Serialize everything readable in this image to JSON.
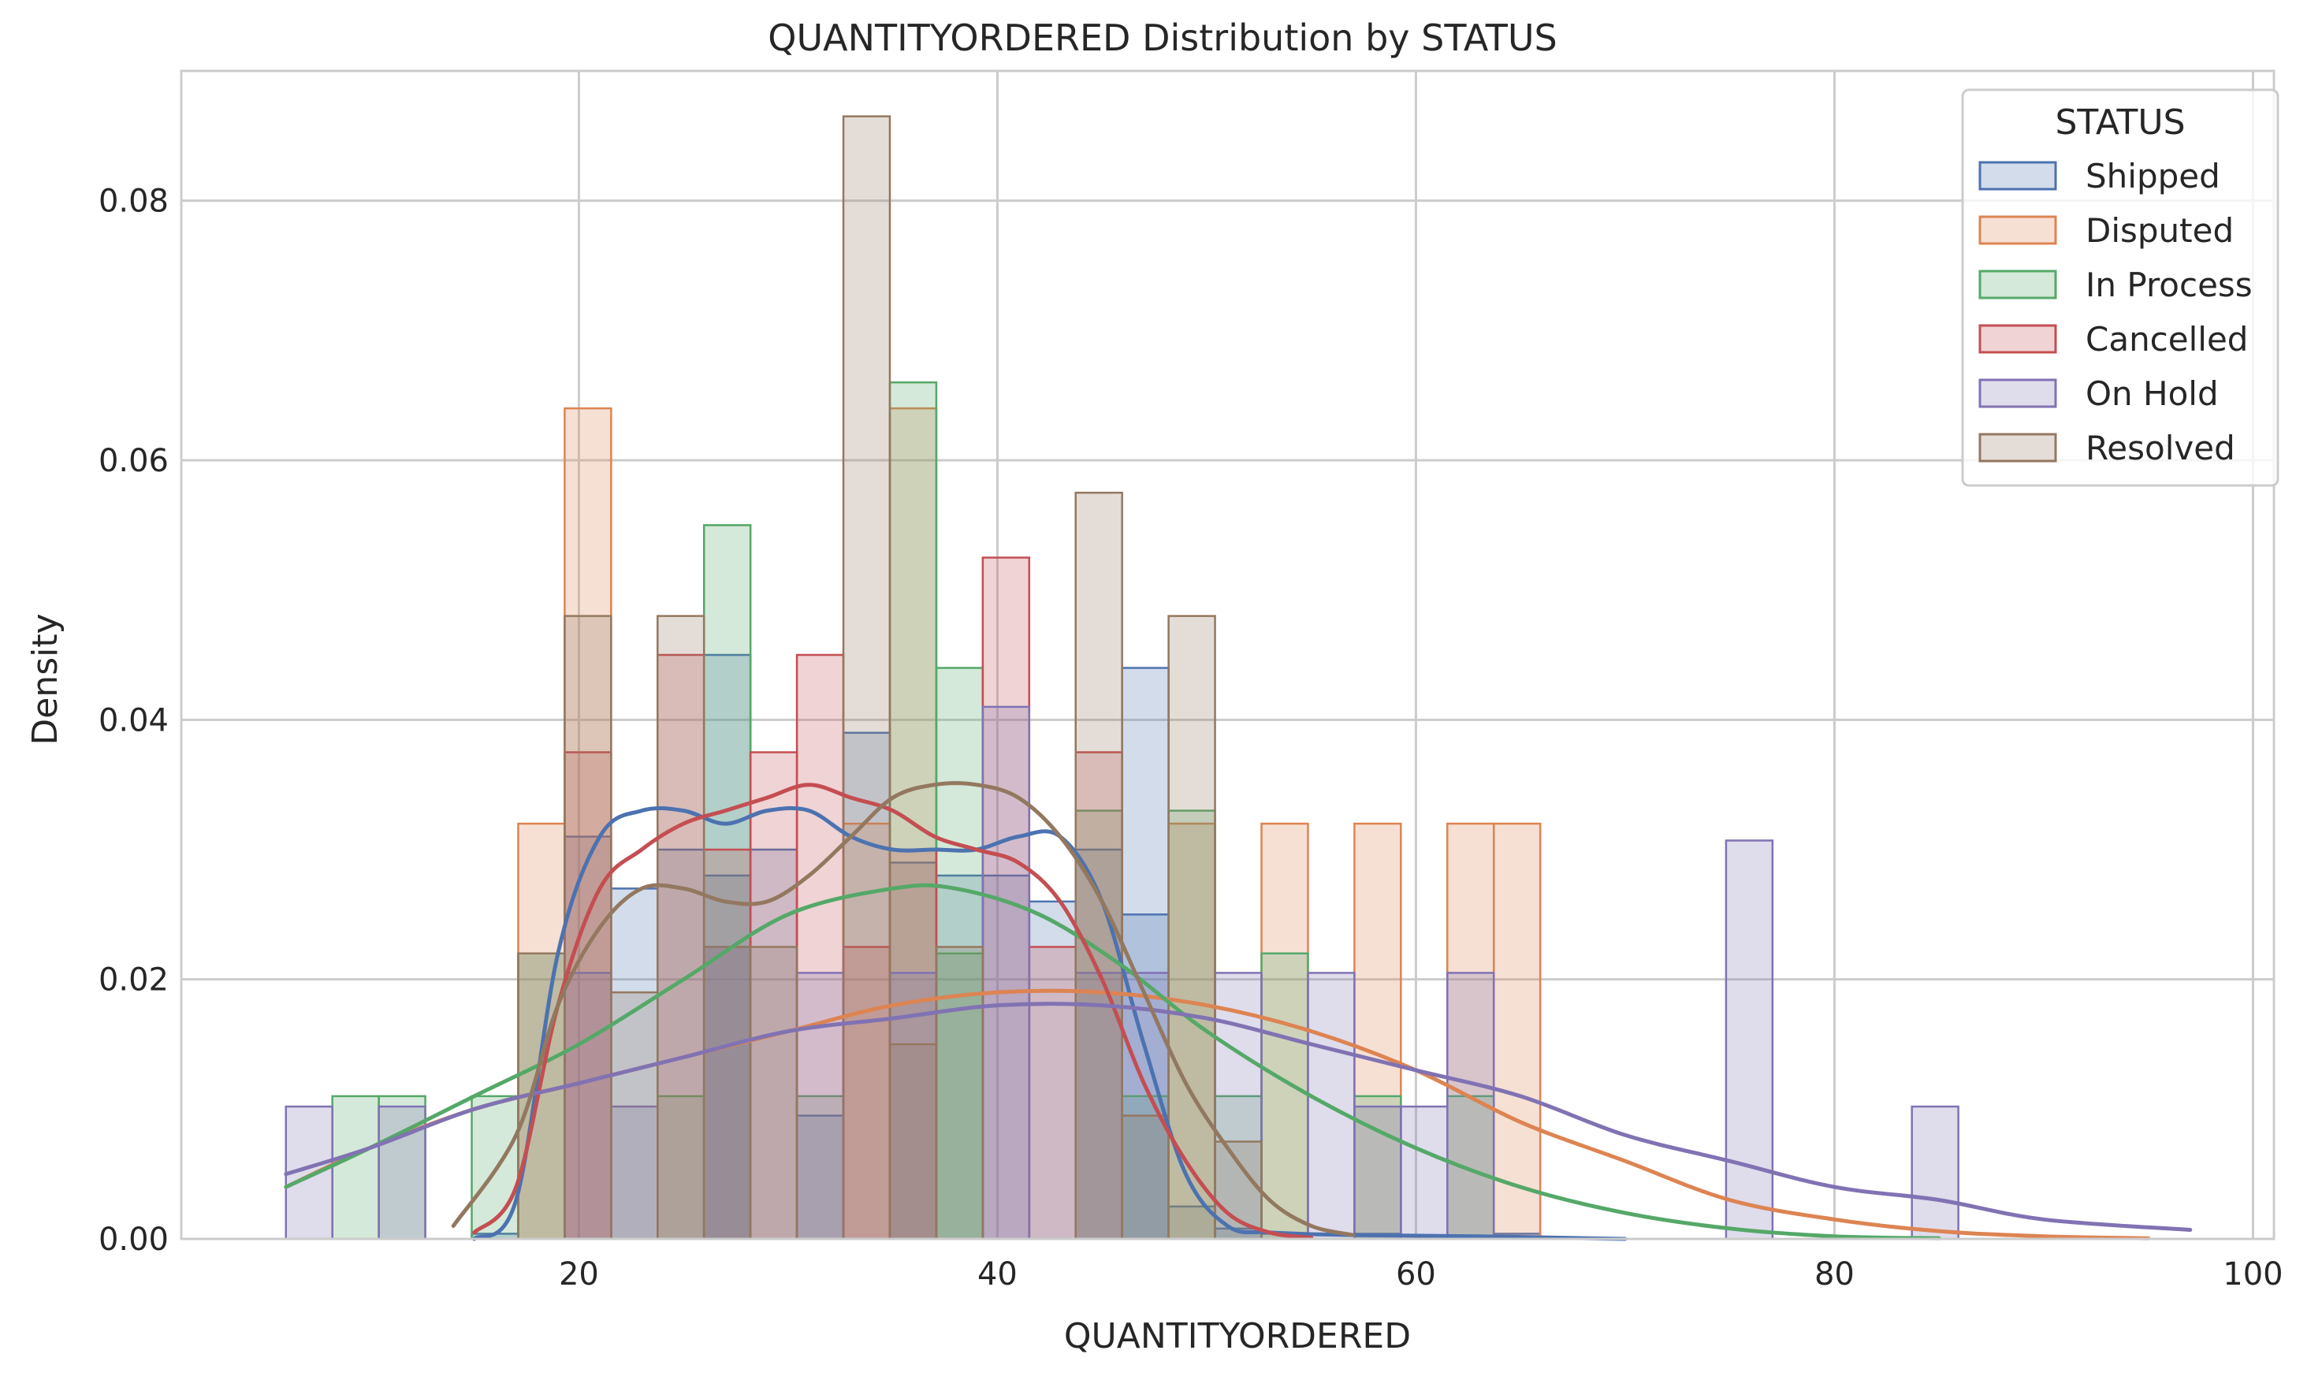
{
  "chart_data": {
    "type": "histogram",
    "title": "QUANTITYORDERED Distribution by STATUS",
    "xlabel": "QUANTITYORDERED",
    "ylabel": "Density",
    "xlim": [
      1,
      101
    ],
    "ylim": [
      0,
      0.09
    ],
    "xticks": [
      20,
      40,
      60,
      80,
      100
    ],
    "yticks": [
      0.0,
      0.02,
      0.04,
      0.06,
      0.08
    ],
    "xtick_labels": [
      "20",
      "40",
      "60",
      "80",
      "100"
    ],
    "ytick_labels": [
      "0.00",
      "0.02",
      "0.04",
      "0.06",
      "0.08"
    ],
    "grid": true,
    "legend": {
      "title": "STATUS",
      "position": "top-right"
    },
    "bins": {
      "start": 6,
      "width": 2.22,
      "count": 41
    },
    "series": [
      {
        "name": "Shipped",
        "color": "#4c72b0",
        "bars": [
          [
            15,
            0.0004
          ],
          [
            19,
            0.031
          ],
          [
            21,
            0.027
          ],
          [
            23,
            0.03
          ],
          [
            25,
            0.045
          ],
          [
            27,
            0.028
          ],
          [
            29,
            0.03
          ],
          [
            31,
            0.0095
          ],
          [
            33,
            0.039
          ],
          [
            35,
            0.029
          ],
          [
            37,
            0.028
          ],
          [
            39,
            0.028
          ],
          [
            41,
            0.026
          ],
          [
            43,
            0.03
          ],
          [
            45,
            0.044
          ],
          [
            47,
            0.025
          ],
          [
            49,
            0.0025
          ],
          [
            51,
            0.0008
          ],
          [
            53,
            0.0004
          ],
          [
            57,
            0.0004
          ],
          [
            63,
            0.0004
          ]
        ],
        "kde": [
          [
            15,
            0.0
          ],
          [
            17,
            0.003
          ],
          [
            19,
            0.022
          ],
          [
            21,
            0.031
          ],
          [
            23,
            0.033
          ],
          [
            25,
            0.033
          ],
          [
            27,
            0.032
          ],
          [
            29,
            0.033
          ],
          [
            31,
            0.033
          ],
          [
            33,
            0.031
          ],
          [
            35,
            0.03
          ],
          [
            37,
            0.03
          ],
          [
            39,
            0.03
          ],
          [
            41,
            0.031
          ],
          [
            43,
            0.031
          ],
          [
            45,
            0.026
          ],
          [
            47,
            0.015
          ],
          [
            49,
            0.005
          ],
          [
            51,
            0.001
          ],
          [
            53,
            0.0005
          ],
          [
            57,
            0.0003
          ],
          [
            63,
            0.0002
          ],
          [
            70,
            0.0
          ]
        ]
      },
      {
        "name": "Disputed",
        "color": "#dd8452",
        "bars": [
          [
            17,
            0.032
          ],
          [
            19,
            0.064
          ],
          [
            33,
            0.032
          ],
          [
            34,
            0.064
          ],
          [
            48,
            0.032
          ],
          [
            52,
            0.032
          ],
          [
            56,
            0.032
          ],
          [
            61,
            0.032
          ],
          [
            63,
            0.032
          ]
        ],
        "kde": [
          [
            6,
            0.004
          ],
          [
            10,
            0.007
          ],
          [
            15,
            0.01
          ],
          [
            20,
            0.012
          ],
          [
            25,
            0.014
          ],
          [
            30,
            0.016
          ],
          [
            35,
            0.018
          ],
          [
            40,
            0.019
          ],
          [
            45,
            0.019
          ],
          [
            50,
            0.018
          ],
          [
            55,
            0.016
          ],
          [
            60,
            0.013
          ],
          [
            65,
            0.009
          ],
          [
            70,
            0.006
          ],
          [
            75,
            0.003
          ],
          [
            80,
            0.0015
          ],
          [
            85,
            0.0006
          ],
          [
            90,
            0.0002
          ],
          [
            95,
            5e-05
          ]
        ]
      },
      {
        "name": "In Process",
        "color": "#55a868",
        "bars": [
          [
            8,
            0.011
          ],
          [
            10,
            0.011
          ],
          [
            14,
            0.011
          ],
          [
            16,
            0.022
          ],
          [
            23,
            0.011
          ],
          [
            25,
            0.055
          ],
          [
            30,
            0.011
          ],
          [
            34,
            0.066
          ],
          [
            36,
            0.044
          ],
          [
            38,
            0.022
          ],
          [
            44,
            0.033
          ],
          [
            46,
            0.011
          ],
          [
            48,
            0.033
          ],
          [
            50,
            0.011
          ],
          [
            52,
            0.022
          ],
          [
            56,
            0.011
          ],
          [
            62,
            0.011
          ]
        ],
        "kde": [
          [
            6,
            0.004
          ],
          [
            10,
            0.007
          ],
          [
            15,
            0.011
          ],
          [
            20,
            0.015
          ],
          [
            25,
            0.02
          ],
          [
            30,
            0.025
          ],
          [
            35,
            0.027
          ],
          [
            38,
            0.027
          ],
          [
            42,
            0.025
          ],
          [
            46,
            0.021
          ],
          [
            50,
            0.016
          ],
          [
            55,
            0.011
          ],
          [
            60,
            0.007
          ],
          [
            65,
            0.004
          ],
          [
            70,
            0.002
          ],
          [
            75,
            0.0008
          ],
          [
            80,
            0.0002
          ],
          [
            85,
            5e-05
          ]
        ]
      },
      {
        "name": "Cancelled",
        "color": "#c44e52",
        "bars": [
          [
            19,
            0.0375
          ],
          [
            23,
            0.045
          ],
          [
            27,
            0.03
          ],
          [
            29,
            0.0375
          ],
          [
            31,
            0.045
          ],
          [
            33,
            0.0225
          ],
          [
            35,
            0.03
          ],
          [
            39,
            0.0525
          ],
          [
            41,
            0.0225
          ],
          [
            43,
            0.0375
          ]
        ],
        "kde": [
          [
            15,
            0.0005
          ],
          [
            17,
            0.004
          ],
          [
            19,
            0.018
          ],
          [
            21,
            0.027
          ],
          [
            23,
            0.03
          ],
          [
            25,
            0.032
          ],
          [
            27,
            0.033
          ],
          [
            29,
            0.034
          ],
          [
            31,
            0.035
          ],
          [
            33,
            0.034
          ],
          [
            35,
            0.033
          ],
          [
            37,
            0.031
          ],
          [
            39,
            0.03
          ],
          [
            41,
            0.029
          ],
          [
            43,
            0.026
          ],
          [
            45,
            0.02
          ],
          [
            47,
            0.012
          ],
          [
            49,
            0.006
          ],
          [
            51,
            0.002
          ],
          [
            53,
            0.0005
          ],
          [
            55,
            0.0001
          ]
        ]
      },
      {
        "name": "On Hold",
        "color": "#8172b3",
        "bars": [
          [
            6,
            0.0102
          ],
          [
            10,
            0.0102
          ],
          [
            19,
            0.0205
          ],
          [
            21,
            0.0102
          ],
          [
            25,
            0.0225
          ],
          [
            31,
            0.0205
          ],
          [
            35,
            0.0205
          ],
          [
            39,
            0.041
          ],
          [
            43,
            0.0205
          ],
          [
            45,
            0.0205
          ],
          [
            51,
            0.0205
          ],
          [
            55,
            0.0205
          ],
          [
            58,
            0.0102
          ],
          [
            60,
            0.0102
          ],
          [
            62,
            0.0205
          ],
          [
            75,
            0.0307
          ],
          [
            84,
            0.0102
          ]
        ],
        "kde": [
          [
            6,
            0.005
          ],
          [
            10,
            0.007
          ],
          [
            15,
            0.01
          ],
          [
            20,
            0.012
          ],
          [
            25,
            0.014
          ],
          [
            30,
            0.016
          ],
          [
            35,
            0.017
          ],
          [
            40,
            0.018
          ],
          [
            45,
            0.018
          ],
          [
            50,
            0.017
          ],
          [
            55,
            0.015
          ],
          [
            60,
            0.013
          ],
          [
            65,
            0.011
          ],
          [
            70,
            0.008
          ],
          [
            75,
            0.006
          ],
          [
            80,
            0.004
          ],
          [
            85,
            0.003
          ],
          [
            90,
            0.0015
          ],
          [
            97,
            0.0007
          ]
        ]
      },
      {
        "name": "Resolved",
        "color": "#937860",
        "bars": [
          [
            17,
            0.022
          ],
          [
            19,
            0.048
          ],
          [
            21,
            0.019
          ],
          [
            23,
            0.048
          ],
          [
            27,
            0.0225
          ],
          [
            29,
            0.0225
          ],
          [
            33,
            0.0865
          ],
          [
            35,
            0.015
          ],
          [
            37,
            0.0225
          ],
          [
            43,
            0.0575
          ],
          [
            45,
            0.0095
          ],
          [
            48,
            0.048
          ],
          [
            50,
            0.0075
          ]
        ],
        "kde": [
          [
            14,
            0.001
          ],
          [
            17,
            0.008
          ],
          [
            19,
            0.018
          ],
          [
            21,
            0.024
          ],
          [
            23,
            0.027
          ],
          [
            25,
            0.027
          ],
          [
            27,
            0.026
          ],
          [
            29,
            0.026
          ],
          [
            31,
            0.028
          ],
          [
            33,
            0.031
          ],
          [
            35,
            0.034
          ],
          [
            37,
            0.035
          ],
          [
            39,
            0.035
          ],
          [
            41,
            0.034
          ],
          [
            43,
            0.031
          ],
          [
            45,
            0.026
          ],
          [
            47,
            0.019
          ],
          [
            49,
            0.012
          ],
          [
            51,
            0.007
          ],
          [
            53,
            0.003
          ],
          [
            55,
            0.001
          ],
          [
            57,
            0.0003
          ]
        ]
      }
    ]
  }
}
